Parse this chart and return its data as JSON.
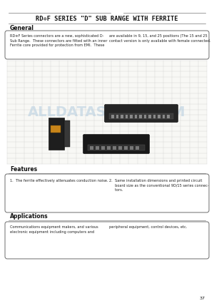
{
  "bg_color": "#ececec",
  "title": "RD✲F SERIES \"D\" SUB RANGE WITH FERRITE",
  "title_fontsize": 6.2,
  "page_number": "37",
  "general_heading": "General",
  "general_text_col1": "RD✲F Series connectors are a new, sophisticated D-\nSub Range.  These connectors are fitted with an inner\nFerrite core provided for protection from EMI.  These",
  "general_text_col2": "are available in 9, 15, and 25 positions (The 15 and 25\ncontact version is only available with female connected.",
  "features_heading": "Features",
  "features_text_col1": "1.  The ferrite effectively attenuates conduction noise.",
  "features_text_col2": "2.  Same installation dimensions and printed circuit\n     board size as the conventional 9D/15 series connec-\n     tors.",
  "applications_heading": "Applications",
  "applications_text_col1": "Communications equipment makers, and various\nelectronic equipment including computers and",
  "applications_text_col2": "peripheral equipment, control devices, etc.",
  "section_heading_fontsize": 5.5,
  "body_text_fontsize": 3.6,
  "line_color": "#777777",
  "box_line_color": "#555555",
  "heading_font_color": "#111111",
  "body_font_color": "#222222",
  "watermark_text": "ALLDATASHEET.COM",
  "watermark_color": "#b8cfe0",
  "grid_color": "#cccccc",
  "white_bg": "#ffffff"
}
